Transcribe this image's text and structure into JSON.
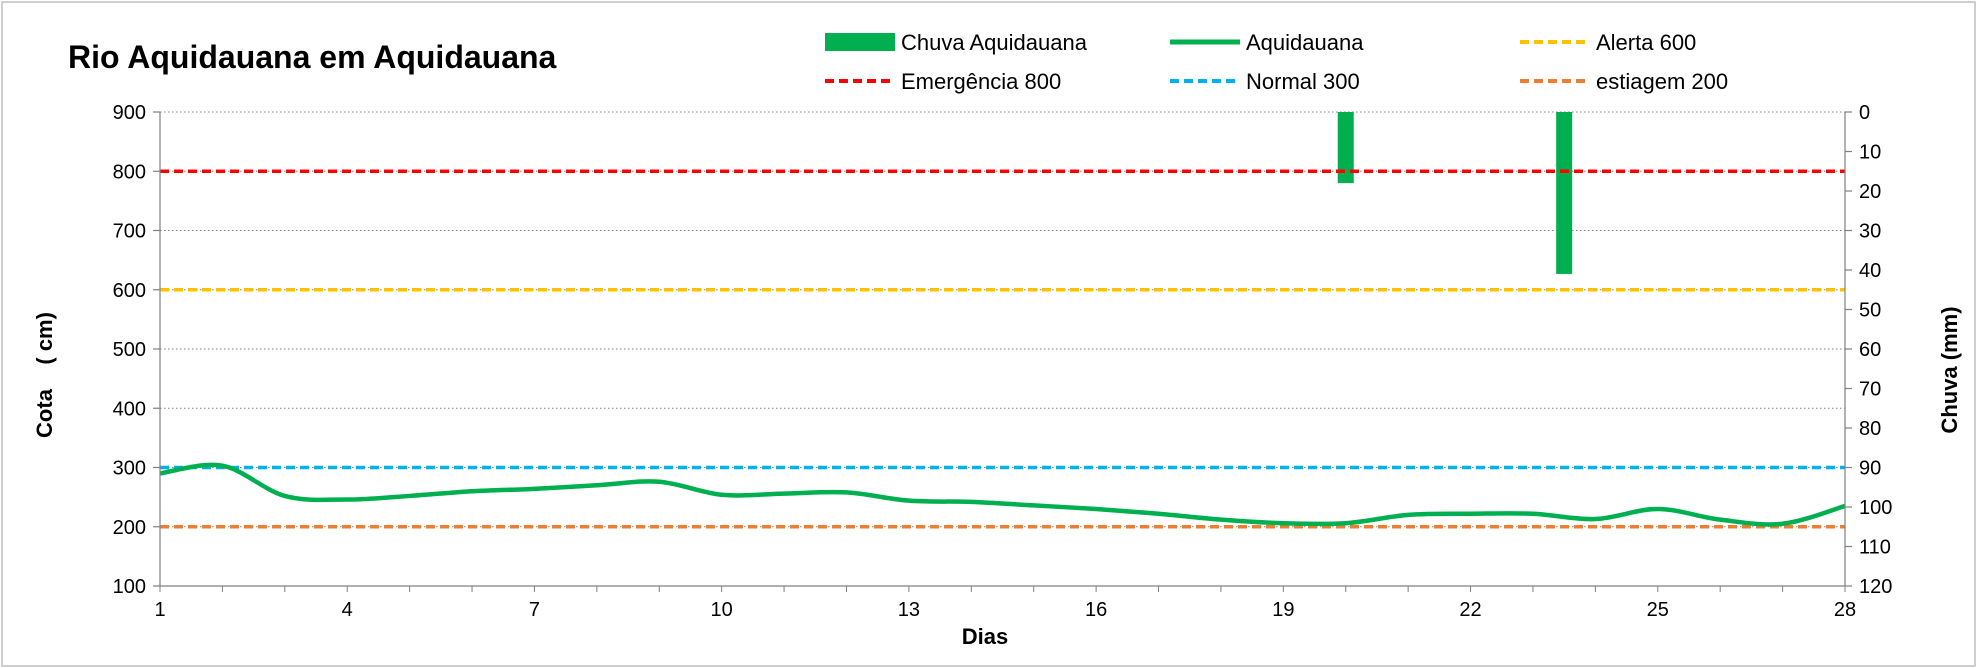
{
  "chart_data": {
    "type": "line",
    "title": "Rio Aquidauana em Aquidauana",
    "xlabel": "Dias",
    "ylabel": "Cota    ( cm)",
    "y2label": "Chuva (mm)",
    "xlim": [
      1,
      28
    ],
    "ylim": [
      100,
      900
    ],
    "y2lim": [
      0,
      120
    ],
    "y2_inverted": true,
    "x_ticks": [
      1,
      4,
      7,
      10,
      13,
      16,
      19,
      22,
      25,
      28
    ],
    "y_ticks": [
      100,
      200,
      300,
      400,
      500,
      600,
      700,
      800,
      900
    ],
    "y2_ticks": [
      0,
      10,
      20,
      30,
      40,
      50,
      60,
      70,
      80,
      90,
      100,
      110,
      120
    ],
    "grid": "horizontal dotted",
    "legend_position": "top",
    "rain": {
      "name": "Chuva Aquidauana",
      "color": "#00b050",
      "x": [
        20,
        23.5
      ],
      "values": [
        18,
        41
      ]
    },
    "level": {
      "name": "Aquidauana",
      "color": "#00b050",
      "x": [
        1,
        2,
        3,
        4,
        5,
        6,
        7,
        8,
        9,
        10,
        11,
        12,
        13,
        14,
        15,
        16,
        17,
        18,
        19,
        20,
        21,
        22,
        23,
        24,
        25,
        26,
        27,
        28
      ],
      "values": [
        290,
        303,
        252,
        246,
        252,
        260,
        264,
        270,
        276,
        254,
        256,
        258,
        244,
        242,
        236,
        230,
        222,
        212,
        206,
        206,
        220,
        222,
        222,
        213,
        230,
        212,
        205,
        235
      ]
    },
    "reference_lines": [
      {
        "name": "Alerta 600",
        "value": 600,
        "color": "#ffc000"
      },
      {
        "name": "Emergência 800",
        "value": 800,
        "color": "#ff0000"
      },
      {
        "name": "Normal  300",
        "value": 300,
        "color": "#00b0f0"
      },
      {
        "name": "estiagem 200",
        "value": 200,
        "color": "#ed7d31"
      }
    ]
  }
}
